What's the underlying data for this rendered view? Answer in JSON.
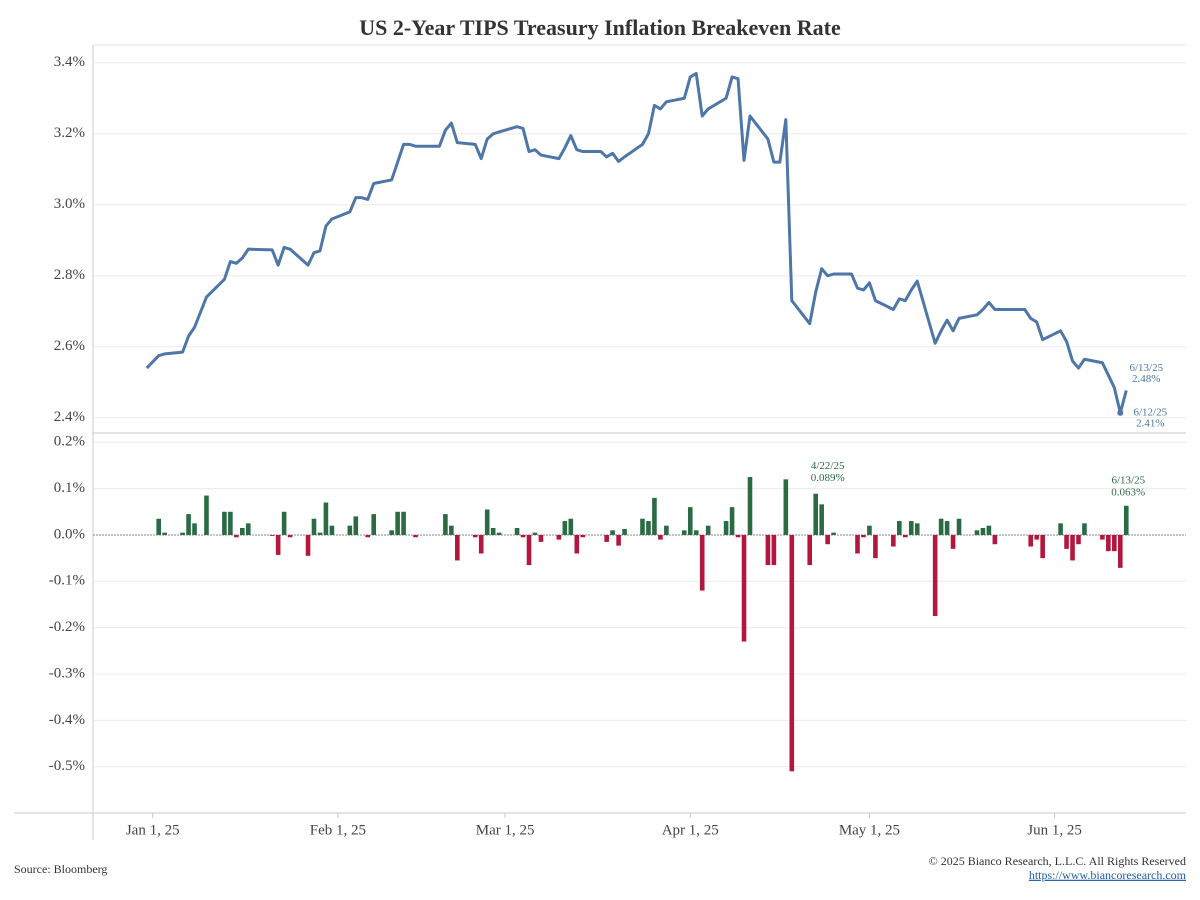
{
  "title": "US 2-Year TIPS Treasury Inflation Breakeven Rate",
  "footer": {
    "source": "Source: Bloomberg",
    "copyright": "© 2025 Bianco Research, L.L.C. All Rights Reserved",
    "url": "https://www.biancoresearch.com"
  },
  "chart_data": [
    {
      "type": "line",
      "x": [
        "2024-12-31",
        "2025-01-02",
        "2025-01-03",
        "2025-01-06",
        "2025-01-07",
        "2025-01-08",
        "2025-01-10",
        "2025-01-13",
        "2025-01-14",
        "2025-01-15",
        "2025-01-16",
        "2025-01-17",
        "2025-01-21",
        "2025-01-22",
        "2025-01-23",
        "2025-01-24",
        "2025-01-27",
        "2025-01-28",
        "2025-01-29",
        "2025-01-30",
        "2025-01-31",
        "2025-02-03",
        "2025-02-04",
        "2025-02-05",
        "2025-02-06",
        "2025-02-07",
        "2025-02-10",
        "2025-02-11",
        "2025-02-12",
        "2025-02-13",
        "2025-02-14",
        "2025-02-18",
        "2025-02-19",
        "2025-02-20",
        "2025-02-21",
        "2025-02-24",
        "2025-02-25",
        "2025-02-26",
        "2025-02-27",
        "2025-02-28",
        "2025-03-03",
        "2025-03-04",
        "2025-03-05",
        "2025-03-06",
        "2025-03-07",
        "2025-03-10",
        "2025-03-11",
        "2025-03-12",
        "2025-03-13",
        "2025-03-14",
        "2025-03-17",
        "2025-03-18",
        "2025-03-19",
        "2025-03-20",
        "2025-03-21",
        "2025-03-24",
        "2025-03-25",
        "2025-03-26",
        "2025-03-27",
        "2025-03-28",
        "2025-03-31",
        "2025-04-01",
        "2025-04-02",
        "2025-04-03",
        "2025-04-04",
        "2025-04-07",
        "2025-04-08",
        "2025-04-09",
        "2025-04-10",
        "2025-04-11",
        "2025-04-14",
        "2025-04-15",
        "2025-04-16",
        "2025-04-17",
        "2025-04-18",
        "2025-04-21",
        "2025-04-22",
        "2025-04-23",
        "2025-04-24",
        "2025-04-25",
        "2025-04-28",
        "2025-04-29",
        "2025-04-30",
        "2025-05-01",
        "2025-05-02",
        "2025-05-05",
        "2025-05-06",
        "2025-05-07",
        "2025-05-08",
        "2025-05-09",
        "2025-05-12",
        "2025-05-13",
        "2025-05-14",
        "2025-05-15",
        "2025-05-16",
        "2025-05-19",
        "2025-05-20",
        "2025-05-21",
        "2025-05-22",
        "2025-05-23",
        "2025-05-27",
        "2025-05-28",
        "2025-05-29",
        "2025-05-30",
        "2025-06-02",
        "2025-06-03",
        "2025-06-04",
        "2025-06-05",
        "2025-06-06",
        "2025-06-09",
        "2025-06-10",
        "2025-06-11",
        "2025-06-12",
        "2025-06-13"
      ],
      "series": [
        {
          "color": "#4e76a6",
          "values": [
            2.54,
            2.575,
            2.58,
            2.585,
            2.63,
            2.655,
            2.74,
            2.79,
            2.84,
            2.835,
            2.85,
            2.875,
            2.873,
            2.83,
            2.88,
            2.875,
            2.83,
            2.865,
            2.87,
            2.94,
            2.96,
            2.98,
            3.02,
            3.02,
            3.015,
            3.06,
            3.07,
            3.12,
            3.17,
            3.17,
            3.165,
            3.165,
            3.21,
            3.23,
            3.175,
            3.17,
            3.13,
            3.185,
            3.2,
            3.205,
            3.22,
            3.215,
            3.15,
            3.155,
            3.14,
            3.13,
            3.16,
            3.195,
            3.155,
            3.15,
            3.15,
            3.135,
            3.145,
            3.122,
            3.135,
            3.17,
            3.2,
            3.28,
            3.27,
            3.29,
            3.3,
            3.36,
            3.37,
            3.25,
            3.27,
            3.3,
            3.36,
            3.355,
            3.125,
            3.25,
            3.185,
            3.12,
            3.12,
            3.24,
            2.73,
            2.665,
            2.754,
            2.82,
            2.8,
            2.805,
            2.805,
            2.765,
            2.76,
            2.78,
            2.73,
            2.705,
            2.735,
            2.73,
            2.76,
            2.785,
            2.61,
            2.645,
            2.675,
            2.645,
            2.68,
            2.69,
            2.705,
            2.725,
            2.705,
            2.705,
            2.705,
            2.68,
            2.67,
            2.62,
            2.645,
            2.615,
            2.56,
            2.54,
            2.565,
            2.555,
            2.52,
            2.485,
            2.414,
            2.477
          ]
        }
      ],
      "xlim": [
        "2024-12-22",
        "2025-06-23"
      ],
      "ylim": [
        2.36,
        3.45
      ],
      "yticks": [
        {
          "value": 2.4,
          "label": "2.4%"
        },
        {
          "value": 2.6,
          "label": "2.6%"
        },
        {
          "value": 2.8,
          "label": "2.8%"
        },
        {
          "value": 3.0,
          "label": "3.0%"
        },
        {
          "value": 3.2,
          "label": "3.2%"
        },
        {
          "value": 3.4,
          "label": "3.4%"
        }
      ],
      "grid": true,
      "annotations": [
        {
          "x": "2025-06-13",
          "date": "6/13/25",
          "label": "2.48%"
        },
        {
          "x": "2025-06-12",
          "date": "6/12/25",
          "label": "2.41%"
        }
      ]
    },
    {
      "type": "bar",
      "x": [
        "2024-12-31",
        "2025-01-02",
        "2025-01-03",
        "2025-01-06",
        "2025-01-07",
        "2025-01-08",
        "2025-01-10",
        "2025-01-13",
        "2025-01-14",
        "2025-01-15",
        "2025-01-16",
        "2025-01-17",
        "2025-01-21",
        "2025-01-22",
        "2025-01-23",
        "2025-01-24",
        "2025-01-27",
        "2025-01-28",
        "2025-01-29",
        "2025-01-30",
        "2025-01-31",
        "2025-02-03",
        "2025-02-04",
        "2025-02-05",
        "2025-02-06",
        "2025-02-07",
        "2025-02-10",
        "2025-02-11",
        "2025-02-12",
        "2025-02-13",
        "2025-02-14",
        "2025-02-18",
        "2025-02-19",
        "2025-02-20",
        "2025-02-21",
        "2025-02-24",
        "2025-02-25",
        "2025-02-26",
        "2025-02-27",
        "2025-02-28",
        "2025-03-03",
        "2025-03-04",
        "2025-03-05",
        "2025-03-06",
        "2025-03-07",
        "2025-03-10",
        "2025-03-11",
        "2025-03-12",
        "2025-03-13",
        "2025-03-14",
        "2025-03-17",
        "2025-03-18",
        "2025-03-19",
        "2025-03-20",
        "2025-03-21",
        "2025-03-24",
        "2025-03-25",
        "2025-03-26",
        "2025-03-27",
        "2025-03-28",
        "2025-03-31",
        "2025-04-01",
        "2025-04-02",
        "2025-04-03",
        "2025-04-04",
        "2025-04-07",
        "2025-04-08",
        "2025-04-09",
        "2025-04-10",
        "2025-04-11",
        "2025-04-14",
        "2025-04-15",
        "2025-04-16",
        "2025-04-17",
        "2025-04-18",
        "2025-04-21",
        "2025-04-22",
        "2025-04-23",
        "2025-04-24",
        "2025-04-25",
        "2025-04-28",
        "2025-04-29",
        "2025-04-30",
        "2025-05-01",
        "2025-05-02",
        "2025-05-05",
        "2025-05-06",
        "2025-05-07",
        "2025-05-08",
        "2025-05-09",
        "2025-05-12",
        "2025-05-13",
        "2025-05-14",
        "2025-05-15",
        "2025-05-16",
        "2025-05-19",
        "2025-05-20",
        "2025-05-21",
        "2025-05-22",
        "2025-05-23",
        "2025-05-27",
        "2025-05-28",
        "2025-05-29",
        "2025-05-30",
        "2025-06-02",
        "2025-06-03",
        "2025-06-04",
        "2025-06-05",
        "2025-06-06",
        "2025-06-09",
        "2025-06-10",
        "2025-06-11",
        "2025-06-12",
        "2025-06-13"
      ],
      "values": [
        null,
        0.035,
        0.005,
        0.005,
        0.045,
        0.025,
        0.085,
        0.05,
        0.05,
        -0.005,
        0.015,
        0.025,
        -0.002,
        -0.043,
        0.05,
        -0.005,
        -0.045,
        0.035,
        0.005,
        0.07,
        0.02,
        0.02,
        0.04,
        0,
        -0.005,
        0.045,
        0.01,
        0.05,
        0.05,
        0,
        -0.005,
        0,
        0.045,
        0.02,
        -0.055,
        -0.005,
        -0.04,
        0.055,
        0.015,
        0.005,
        0.015,
        -0.005,
        -0.065,
        0.005,
        -0.015,
        -0.01,
        0.03,
        0.035,
        -0.04,
        -0.005,
        0,
        -0.015,
        0.01,
        -0.023,
        0.013,
        0.035,
        0.03,
        0.08,
        -0.01,
        0.02,
        0.01,
        0.06,
        0.01,
        -0.12,
        0.02,
        0.03,
        0.06,
        -0.005,
        -0.23,
        0.125,
        -0.065,
        -0.065,
        0,
        0.12,
        -0.51,
        -0.065,
        0.089,
        0.066,
        -0.02,
        0.005,
        0,
        -0.04,
        -0.005,
        0.02,
        -0.05,
        -0.025,
        0.03,
        -0.005,
        0.03,
        0.025,
        -0.175,
        0.035,
        0.03,
        -0.03,
        0.035,
        0.01,
        0.015,
        0.02,
        -0.02,
        0,
        0,
        -0.025,
        -0.01,
        -0.05,
        0.025,
        -0.03,
        -0.055,
        -0.02,
        0.025,
        -0.01,
        -0.035,
        -0.035,
        -0.071,
        0.063
      ],
      "positive_color": "#2b6b44",
      "negative_color": "#b3173e",
      "xlim": [
        "2024-12-22",
        "2025-06-23"
      ],
      "xticks": [
        {
          "value": "2025-01-01",
          "label": "Jan 1, 25"
        },
        {
          "value": "2025-02-01",
          "label": "Feb 1, 25"
        },
        {
          "value": "2025-03-01",
          "label": "Mar 1, 25"
        },
        {
          "value": "2025-04-01",
          "label": "Apr 1, 25"
        },
        {
          "value": "2025-05-01",
          "label": "May 1, 25"
        },
        {
          "value": "2025-06-01",
          "label": "Jun 1, 25"
        }
      ],
      "ylim": [
        -0.6,
        0.22
      ],
      "yticks": [
        {
          "value": 0.2,
          "label": "0.2%"
        },
        {
          "value": 0.1,
          "label": "0.1%"
        },
        {
          "value": 0.0,
          "label": "0.0%"
        },
        {
          "value": -0.1,
          "label": "-0.1%"
        },
        {
          "value": -0.2,
          "label": "-0.2%"
        },
        {
          "value": -0.3,
          "label": "-0.3%"
        },
        {
          "value": -0.4,
          "label": "-0.4%"
        },
        {
          "value": -0.5,
          "label": "-0.5%"
        }
      ],
      "grid": true,
      "annotations": [
        {
          "x": "2025-04-22",
          "date": "4/22/25",
          "label": "0.089%"
        },
        {
          "x": "2025-06-13",
          "date": "6/13/25",
          "label": "0.063%"
        }
      ]
    }
  ]
}
